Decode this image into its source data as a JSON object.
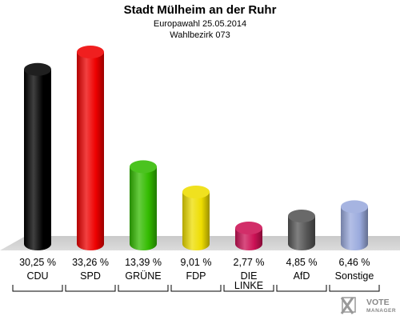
{
  "chart_data": {
    "type": "bar",
    "title": "Stadt Mülheim an der Ruhr",
    "subtitle": "Europawahl 25.05.2014",
    "subtitle2": "Wahlbezirk 073",
    "categories": [
      "CDU",
      "SPD",
      "GRÜNE",
      "FDP",
      "DIE LINKE",
      "AfD",
      "Sonstige"
    ],
    "category_lines": [
      [
        "CDU"
      ],
      [
        "SPD"
      ],
      [
        "GRÜNE"
      ],
      [
        "FDP"
      ],
      [
        "DIE",
        "LINKE"
      ],
      [
        "AfD"
      ],
      [
        "Sonstige"
      ]
    ],
    "values": [
      30.25,
      33.26,
      13.39,
      9.01,
      2.77,
      4.85,
      6.46
    ],
    "value_labels": [
      "30,25 %",
      "33,26 %",
      "13,39 %",
      "9,01 %",
      "2,77 %",
      "4,85 %",
      "6,46 %"
    ],
    "colors": [
      "#000000",
      "#ee0000",
      "#33bb00",
      "#eedd00",
      "#cc1155",
      "#555555",
      "#9aaadd"
    ],
    "ylim": [
      0,
      33.26
    ],
    "grid": false
  },
  "logo": {
    "line1": "VOTE",
    "line2": "MANAGER"
  }
}
